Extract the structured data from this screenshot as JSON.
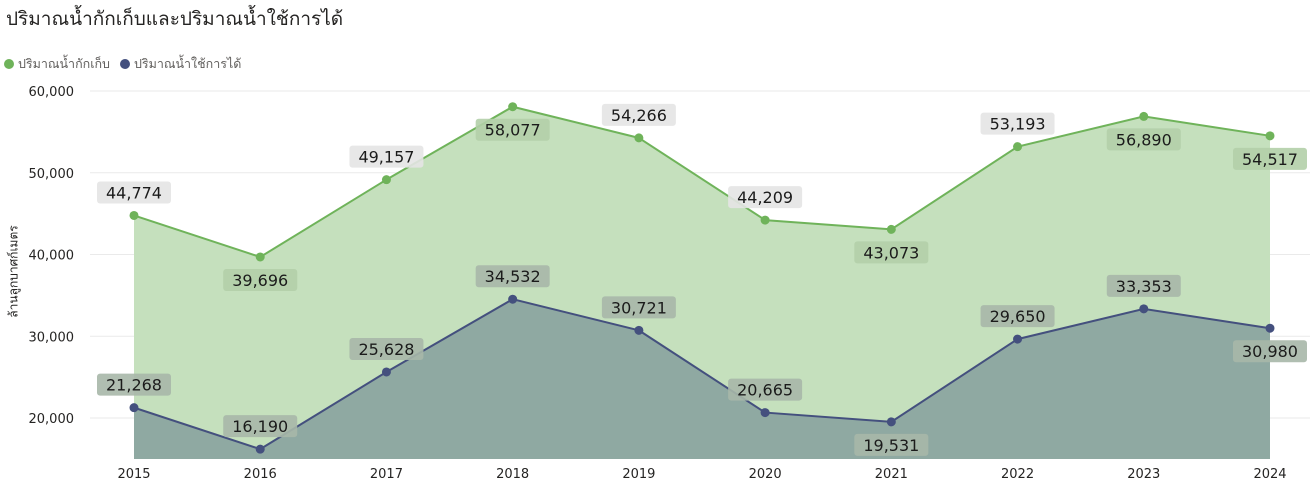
{
  "title": "ปริมาณน้ำกักเก็บและปริมาณน้ำใช้การได้",
  "chart_data": {
    "type": "area",
    "title": "ปริมาณน้ำกักเก็บและปริมาณน้ำใช้การได้",
    "xlabel": "",
    "ylabel": "ล้านลูกบาศก์เมตร",
    "x": [
      "2015",
      "2016",
      "2017",
      "2018",
      "2019",
      "2020",
      "2021",
      "2022",
      "2023",
      "2024"
    ],
    "series": [
      {
        "name": "ปริมาณน้ำกักเก็บ",
        "color": "#6fb35a",
        "fill": "#c5e0bd",
        "values": [
          44774,
          39696,
          49157,
          58077,
          54266,
          44209,
          43073,
          53193,
          56890,
          54517
        ],
        "labels": [
          "44,774",
          "39,696",
          "49,157",
          "58,077",
          "54,266",
          "44,209",
          "43,073",
          "53,193",
          "56,890",
          "54,517"
        ]
      },
      {
        "name": "ปริมาณน้ำใช้การได้",
        "color": "#44507e",
        "fill": "#8ea7a1",
        "values": [
          21268,
          16190,
          25628,
          34532,
          30721,
          20665,
          19531,
          29650,
          33353,
          30980
        ],
        "labels": [
          "21,268",
          "16,190",
          "25,628",
          "34,532",
          "30,721",
          "20,665",
          "19,531",
          "29,650",
          "33,353",
          "30,980"
        ]
      }
    ],
    "yticks": [
      "20,000",
      "30,000",
      "40,000",
      "50,000",
      "60,000"
    ],
    "ytick_values": [
      20000,
      30000,
      40000,
      50000,
      60000
    ],
    "ylim": [
      15000,
      62000
    ],
    "grid": true,
    "legend": "top-left"
  }
}
